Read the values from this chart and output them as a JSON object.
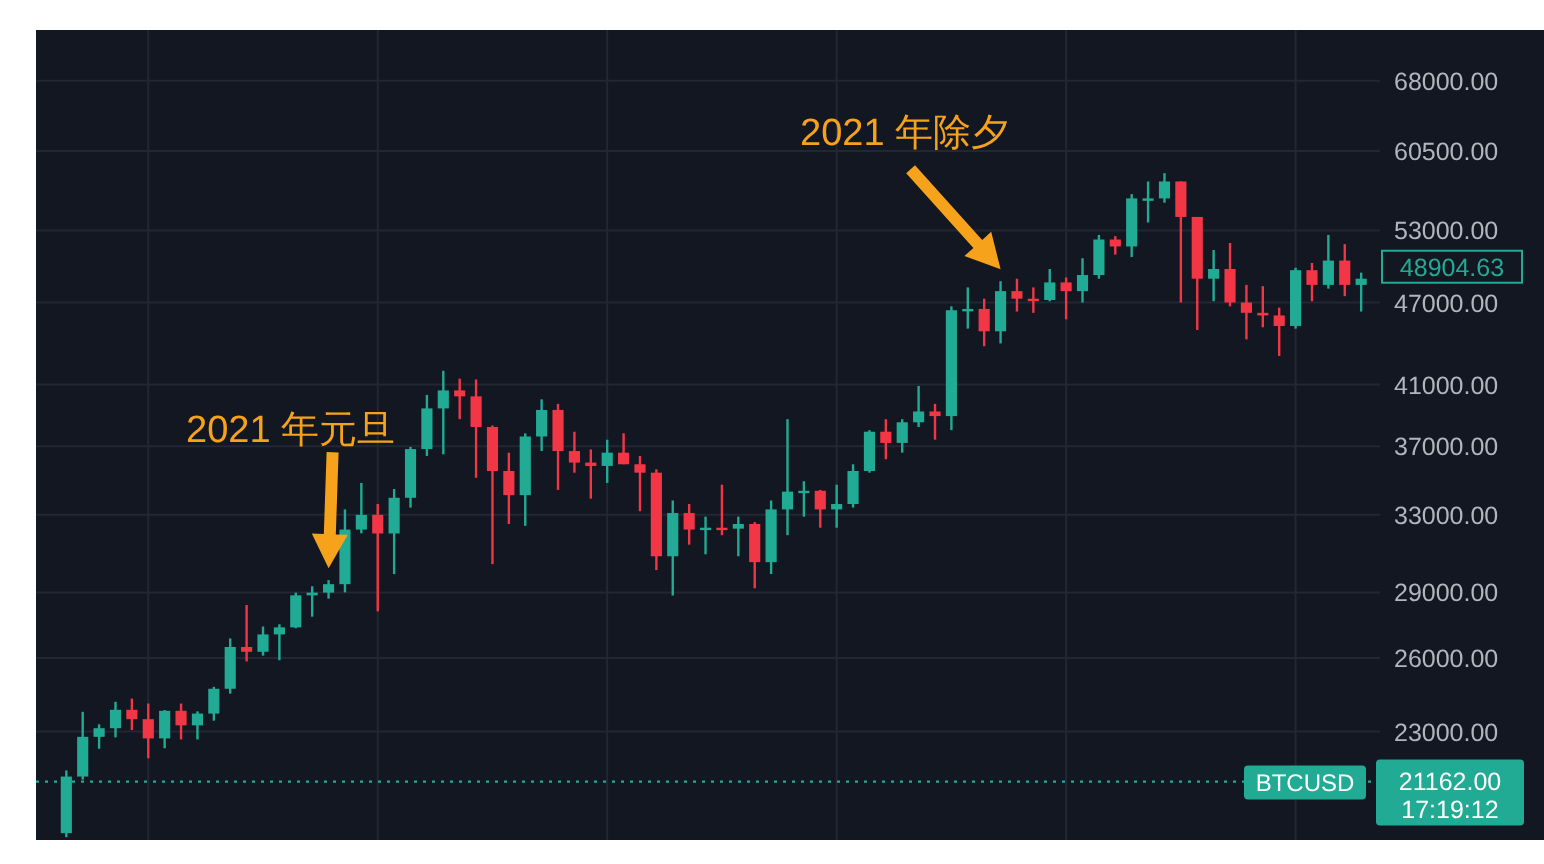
{
  "chart_data": {
    "type": "candlestick",
    "categories": [
      null,
      null,
      null,
      null,
      null,
      null,
      null,
      null,
      null,
      null,
      null,
      null,
      null,
      null,
      null,
      null,
      null,
      null,
      null,
      null,
      null,
      null,
      null,
      null,
      null,
      null,
      null,
      null,
      null,
      null,
      null,
      null,
      null,
      null,
      null,
      null,
      null,
      null,
      null,
      null,
      null,
      null,
      null,
      null,
      null,
      null,
      null,
      null,
      null,
      null,
      null,
      null,
      null,
      null,
      null,
      null,
      null,
      null,
      null,
      null,
      null,
      null,
      null,
      null,
      null,
      null,
      null,
      null,
      null,
      null,
      null,
      null,
      null,
      null,
      null,
      null,
      null,
      null,
      null,
      null
    ],
    "ohlc": [
      [
        19420,
        21560,
        19290,
        21340
      ],
      [
        21340,
        23770,
        21230,
        22800
      ],
      [
        22800,
        23280,
        22350,
        23130
      ],
      [
        23130,
        24170,
        22780,
        23850
      ],
      [
        23850,
        24300,
        23060,
        23480
      ],
      [
        23480,
        24100,
        22000,
        22740
      ],
      [
        22740,
        23840,
        22370,
        23810
      ],
      [
        23810,
        24100,
        22700,
        23240
      ],
      [
        23240,
        23790,
        22700,
        23700
      ],
      [
        23700,
        24780,
        23420,
        24700
      ],
      [
        24700,
        26860,
        24500,
        26480
      ],
      [
        26480,
        28400,
        25850,
        26270
      ],
      [
        26270,
        27400,
        26100,
        27040
      ],
      [
        27040,
        27500,
        25900,
        27360
      ],
      [
        27360,
        28990,
        27320,
        28860
      ],
      [
        28860,
        29300,
        27850,
        28990
      ],
      [
        28990,
        29600,
        28700,
        29400
      ],
      [
        29400,
        33300,
        29000,
        32200
      ],
      [
        32200,
        34800,
        32000,
        33000
      ],
      [
        33000,
        33600,
        28100,
        31990
      ],
      [
        31990,
        34450,
        29900,
        33950
      ],
      [
        33950,
        36950,
        33400,
        36820
      ],
      [
        36820,
        40300,
        36400,
        39400
      ],
      [
        39400,
        41950,
        36500,
        40600
      ],
      [
        40600,
        41400,
        38700,
        40200
      ],
      [
        40200,
        41350,
        35100,
        38200
      ],
      [
        38200,
        38300,
        30400,
        35500
      ],
      [
        35500,
        36600,
        32500,
        34100
      ],
      [
        34100,
        37800,
        32400,
        37600
      ],
      [
        37600,
        40000,
        36700,
        39300
      ],
      [
        39300,
        39700,
        34400,
        36700
      ],
      [
        36700,
        37900,
        35400,
        36000
      ],
      [
        36000,
        36800,
        33900,
        35800
      ],
      [
        35800,
        37400,
        34800,
        36600
      ],
      [
        36600,
        37800,
        35900,
        35900
      ],
      [
        35900,
        36400,
        33200,
        35400
      ],
      [
        35400,
        35600,
        30100,
        30800
      ],
      [
        30800,
        33800,
        28850,
        33100
      ],
      [
        33100,
        33600,
        31400,
        32200
      ],
      [
        32200,
        32900,
        30900,
        32300
      ],
      [
        32300,
        34700,
        31900,
        32250
      ],
      [
        32250,
        32900,
        30800,
        32500
      ],
      [
        32500,
        32600,
        29200,
        30500
      ],
      [
        30500,
        33800,
        29900,
        33300
      ],
      [
        33300,
        38700,
        31900,
        34300
      ],
      [
        34300,
        34900,
        32900,
        34350
      ],
      [
        34350,
        34400,
        32300,
        33300
      ],
      [
        33300,
        34700,
        32300,
        33600
      ],
      [
        33600,
        35900,
        33400,
        35500
      ],
      [
        35500,
        38000,
        35400,
        37900
      ],
      [
        37900,
        38700,
        36200,
        37200
      ],
      [
        37200,
        38700,
        36600,
        38500
      ],
      [
        38500,
        40900,
        38200,
        39200
      ],
      [
        39200,
        39700,
        37400,
        38900
      ],
      [
        38900,
        46700,
        38000,
        46400
      ],
      [
        46400,
        48200,
        45000,
        46500
      ],
      [
        46500,
        47300,
        43700,
        44800
      ],
      [
        44800,
        48700,
        43900,
        47900
      ],
      [
        47900,
        48900,
        46300,
        47300
      ],
      [
        47300,
        48200,
        46200,
        47200
      ],
      [
        47200,
        49700,
        47100,
        48600
      ],
      [
        48600,
        49000,
        45700,
        47900
      ],
      [
        47900,
        50600,
        47000,
        49200
      ],
      [
        49200,
        52600,
        48900,
        52200
      ],
      [
        52200,
        52500,
        50900,
        51600
      ],
      [
        51600,
        56300,
        50700,
        55900
      ],
      [
        55900,
        57500,
        53700,
        55900
      ],
      [
        55900,
        58300,
        55500,
        57500
      ],
      [
        57500,
        57500,
        47000,
        54200
      ],
      [
        54200,
        54200,
        44900,
        48900
      ],
      [
        48900,
        51300,
        47100,
        49700
      ],
      [
        49700,
        51900,
        46700,
        47000
      ],
      [
        47000,
        48400,
        44200,
        46200
      ],
      [
        46200,
        48300,
        45100,
        46000
      ],
      [
        46000,
        46600,
        43000,
        45200
      ],
      [
        45200,
        49800,
        45000,
        49600
      ],
      [
        49600,
        50200,
        47100,
        48400
      ],
      [
        48400,
        52600,
        48100,
        50400
      ],
      [
        50400,
        51800,
        47500,
        48400
      ],
      [
        48400,
        49400,
        46300,
        48900
      ]
    ],
    "colors": [
      "#22ab94",
      "#22ab94",
      "#22ab94",
      "#22ab94",
      "#f23645",
      "#f23645",
      "#22ab94",
      "#f23645",
      "#22ab94",
      "#22ab94",
      "#22ab94",
      "#f23645",
      "#22ab94",
      "#22ab94",
      "#22ab94",
      "#22ab94",
      "#22ab94",
      "#22ab94",
      "#22ab94",
      "#f23645",
      "#22ab94",
      "#22ab94",
      "#22ab94",
      "#22ab94",
      "#f23645",
      "#f23645",
      "#f23645",
      "#f23645",
      "#22ab94",
      "#22ab94",
      "#f23645",
      "#f23645",
      "#f23645",
      "#22ab94",
      "#f23645",
      "#f23645",
      "#f23645",
      "#22ab94",
      "#f23645",
      "#22ab94",
      "#f23645",
      "#22ab94",
      "#f23645",
      "#22ab94",
      "#22ab94",
      "#22ab94",
      "#f23645",
      "#22ab94",
      "#22ab94",
      "#22ab94",
      "#f23645",
      "#22ab94",
      "#22ab94",
      "#f23645",
      "#22ab94",
      "#22ab94",
      "#f23645",
      "#22ab94",
      "#f23645",
      "#f23645",
      "#22ab94",
      "#f23645",
      "#22ab94",
      "#22ab94",
      "#f23645",
      "#22ab94",
      "#22ab94",
      "#22ab94",
      "#f23645",
      "#f23645",
      "#22ab94",
      "#f23645",
      "#f23645",
      "#f23645",
      "#f23645",
      "#22ab94",
      "#f23645",
      "#22ab94",
      "#f23645",
      "#22ab94"
    ],
    "log": true,
    "ylim": [
      19200,
      74000
    ],
    "yticks": [
      {
        "value": 23000,
        "label": "23000.00"
      },
      {
        "value": 26000,
        "label": "26000.00"
      },
      {
        "value": 29000,
        "label": "29000.00"
      },
      {
        "value": 33000,
        "label": "33000.00"
      },
      {
        "value": 37000,
        "label": "37000.00"
      },
      {
        "value": 41000,
        "label": "41000.00"
      },
      {
        "value": 47000,
        "label": "47000.00"
      },
      {
        "value": 53000,
        "label": "53000.00"
      },
      {
        "value": 60500,
        "label": "60500.00"
      },
      {
        "value": 68000,
        "label": "68000.00"
      }
    ],
    "grid": true,
    "tick_labels": "y",
    "ref_lines": [
      {
        "axis": "y",
        "value": 21162,
        "label": "BTCUSD",
        "color": "#22ab94",
        "line_style": "dotted"
      }
    ],
    "annotations": [
      "2021 年元旦",
      "2021 年除夕",
      "48904.63",
      "21162.00",
      "17:19:12"
    ]
  }
}
